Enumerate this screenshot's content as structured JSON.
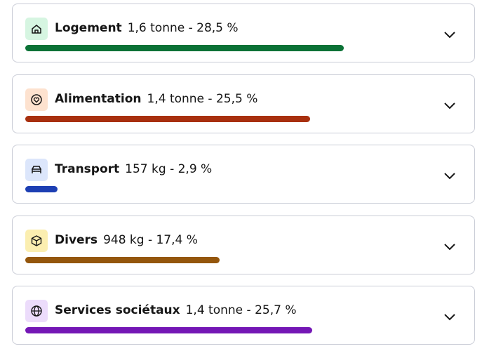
{
  "chart_data": {
    "type": "bar",
    "categories": [
      "Logement",
      "Alimentation",
      "Transport",
      "Divers",
      "Services sociétaux"
    ],
    "details": [
      "1,6 tonne - 28,5 %",
      "1,4 tonne - 25,5 %",
      "157 kg - 2,9 %",
      "948 kg - 17,4 %",
      "1,4 tonne - 25,7 %"
    ],
    "values": [
      28.5,
      25.5,
      2.9,
      17.4,
      25.7
    ],
    "colors": [
      "#0b7236",
      "#a8300f",
      "#1d3fb3",
      "#94560c",
      "#7417b5"
    ],
    "icon_backgrounds": [
      "#d6f5e1",
      "#fde2cf",
      "#dce6fb",
      "#fbeeb0",
      "#ecdcfb"
    ]
  }
}
